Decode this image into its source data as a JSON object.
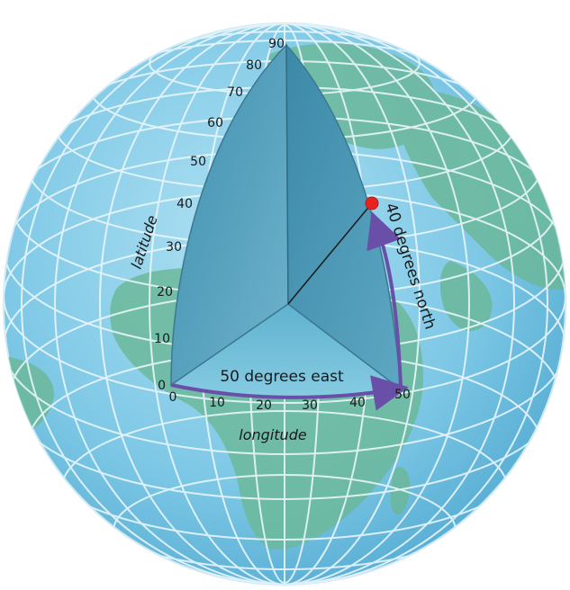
{
  "latitude": {
    "title": "latitude",
    "ticks": [
      "0",
      "10",
      "20",
      "30",
      "40",
      "50",
      "60",
      "70",
      "80",
      "90"
    ]
  },
  "longitude": {
    "title": "longitude",
    "ticks": [
      "0",
      "10",
      "20",
      "30",
      "40",
      "50"
    ]
  },
  "arc_labels": {
    "east": "50 degrees east",
    "north": "40 degrees north"
  },
  "point": {
    "longitude": 50,
    "latitude": 40
  },
  "colors": {
    "ocean": "#7ec8e6",
    "land": "#6cb89a",
    "grid": "#e8f6fb",
    "wedge": "#4f9bb8",
    "arrow": "#6a4fa8",
    "marker": "#e8231f"
  },
  "icons": {
    "marker": "red-dot-icon"
  }
}
